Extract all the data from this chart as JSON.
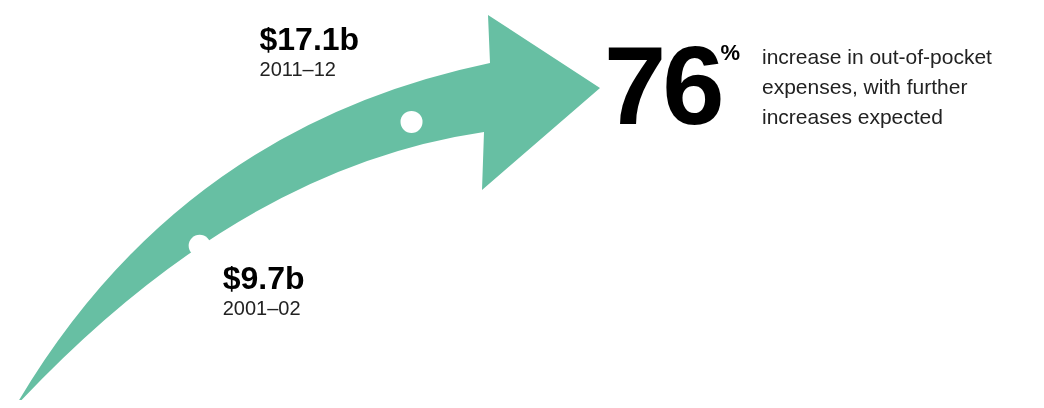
{
  "chart_data": {
    "type": "other",
    "categories": [
      "2001–02",
      "2011–12"
    ],
    "values": [
      9.7,
      17.1
    ],
    "value_labels": [
      "$9.7b",
      "$17.1b"
    ],
    "color": "#67bfa3",
    "annotations": [
      "76%",
      "increase in out-of-pocket expenses, with further increases expected"
    ]
  }
}
